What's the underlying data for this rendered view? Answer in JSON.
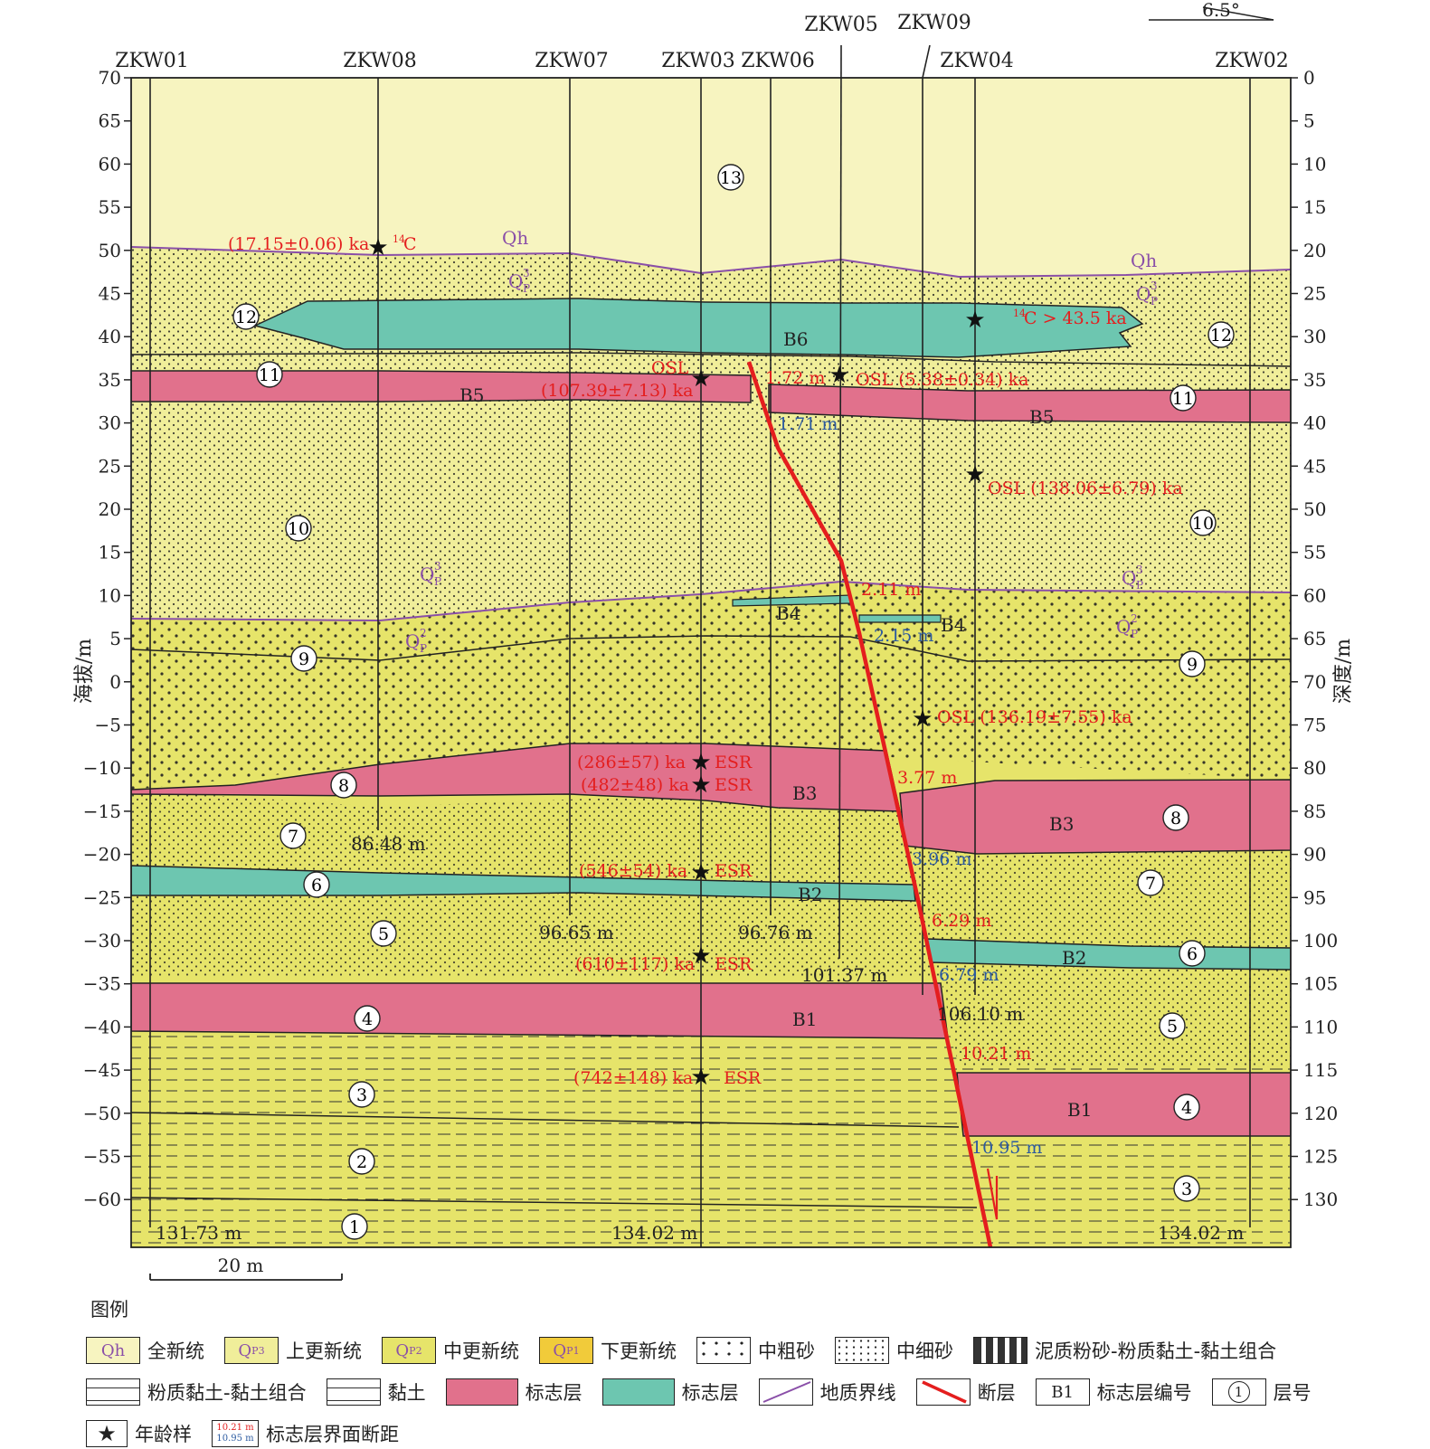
{
  "left_axis": {
    "label": "海拔/m",
    "ticks": [
      "70",
      "65",
      "60",
      "55",
      "50",
      "45",
      "40",
      "35",
      "30",
      "25",
      "20",
      "15",
      "10",
      "5",
      "0",
      "−5",
      "−10",
      "−15",
      "−20",
      "−25",
      "−30",
      "−35",
      "−40",
      "−45",
      "−50",
      "−55",
      "−60"
    ]
  },
  "right_axis": {
    "label": "深度/m",
    "ticks": [
      "0",
      "5",
      "10",
      "15",
      "20",
      "25",
      "30",
      "35",
      "40",
      "45",
      "50",
      "55",
      "60",
      "65",
      "70",
      "75",
      "80",
      "85",
      "90",
      "95",
      "100",
      "105",
      "110",
      "115",
      "120",
      "125",
      "130"
    ]
  },
  "boreholes": {
    "zkw01": "ZKW01",
    "zkw08": "ZKW08",
    "zkw07": "ZKW07",
    "zkw03": "ZKW03",
    "zkw06": "ZKW06",
    "zkw05": "ZKW05",
    "zkw09": "ZKW09",
    "zkw04": "ZKW04",
    "zkw02": "ZKW02"
  },
  "north_angle": "6.5°",
  "depths": {
    "zkw01": "131.73 m",
    "zkw08": "86.48 m",
    "zkw07": "96.65 m",
    "zkw03": "134.02 m",
    "zkw06": "96.76 m",
    "zkw05": "101.37 m",
    "zkw04": "106.10 m",
    "zkw02": "134.02 m"
  },
  "layer_numbers": {
    "n13": "13",
    "n12a": "12",
    "n12b": "12",
    "n11a": "11",
    "n11b": "11",
    "n10a": "10",
    "n10b": "10",
    "n9a": "9",
    "n9b": "9",
    "n8a": "8",
    "n8b": "8",
    "n7a": "7",
    "n7b": "7",
    "n6a": "6",
    "n6b": "6",
    "n5a": "5",
    "n5b": "5",
    "n4a": "4",
    "n4b": "4",
    "n3a": "3",
    "n3b": "3",
    "n2": "2",
    "n1": "1"
  },
  "marker_labels": {
    "b6": "B6",
    "b5a": "B5",
    "b5b": "B5",
    "b4a": "B4",
    "b4b": "B4",
    "b3a": "B3",
    "b3b": "B3",
    "b2a": "B2",
    "b2b": "B2",
    "b1a": "B1",
    "b1b": "B1"
  },
  "strat_labels": {
    "qh1": "Qh",
    "qh2": "Qh",
    "q3": "Q",
    "q2": "Q",
    "sub3": "3",
    "sub2": "2",
    "subp": "P"
  },
  "ages": {
    "a1": "(17.15±0.06) ka",
    "a1_method": "C",
    "a1_sup": "14",
    "a2_method": "OSL",
    "a2": "(107.39±7.13) ka",
    "a3": "OSL  (5.38±0.34) ka",
    "a4_sup": "14",
    "a4": "C > 43.5 ka",
    "a5": "OSL  (138.06±6.79) ka",
    "a6": "OSL  (136.19±7.55) ka",
    "a7": "(286±57) ka",
    "a7_method": "ESR",
    "a8": "(482±48) ka",
    "a8_method": "ESR",
    "a9": "(546±54) ka",
    "a9_method": "ESR",
    "a10": "(610±117) ka",
    "a10_method": "ESR",
    "a11": "(742±148) ka",
    "a11_method": "ESR"
  },
  "offsets": {
    "o1": "1.72 m",
    "o2": "1.71 m",
    "o3": "2.11 m",
    "o4": "2.15 m",
    "o5": "3.77 m",
    "o6": "3.96 m",
    "o7": "6.29 m",
    "o8": "6.79 m",
    "o9": "10.21 m",
    "o10": "10.95 m"
  },
  "scale_bar": "20 m",
  "legend": {
    "title": "图例",
    "qh": "全新统",
    "q3": "上更新统",
    "q2": "中更新统",
    "q1": "下更新统",
    "coarse_sand": "中粗砂",
    "fine_sand": "中细砂",
    "muddy_silt": "泥质粉砂-粉质黏土-黏土组合",
    "silty_clay": "粉质黏土-黏土组合",
    "clay": "黏土",
    "marker_red": "标志层",
    "marker_teal": "标志层",
    "boundary": "地质界线",
    "fault": "断层",
    "marker_code": "标志层编号",
    "marker_code_sample": "B1",
    "layer_no": "层号",
    "layer_no_sample": "1",
    "age_sample": "年龄样",
    "offset": "标志层界面断距",
    "offset_sample_a": "10.21 m",
    "offset_sample_b": "10.95 m",
    "sw_qh": "Qh",
    "sw_q": "Q",
    "sw_p": "P",
    "sw_3": "3",
    "sw_2": "2",
    "sw_1": "1"
  },
  "colors": {
    "holocene": "#f7f4c0",
    "upper_pleistocene": "#f0ee9a",
    "middle_pleistocene": "#e6e46a",
    "lower_pleistocene": "#f1cb3a",
    "marker_red": "#e1718c",
    "marker_teal": "#6dc6b0",
    "boundary": "#8a4fa8",
    "fault": "#e41e1e",
    "age_text": "#e41e1e",
    "offset_text": "#2c5aa0"
  }
}
